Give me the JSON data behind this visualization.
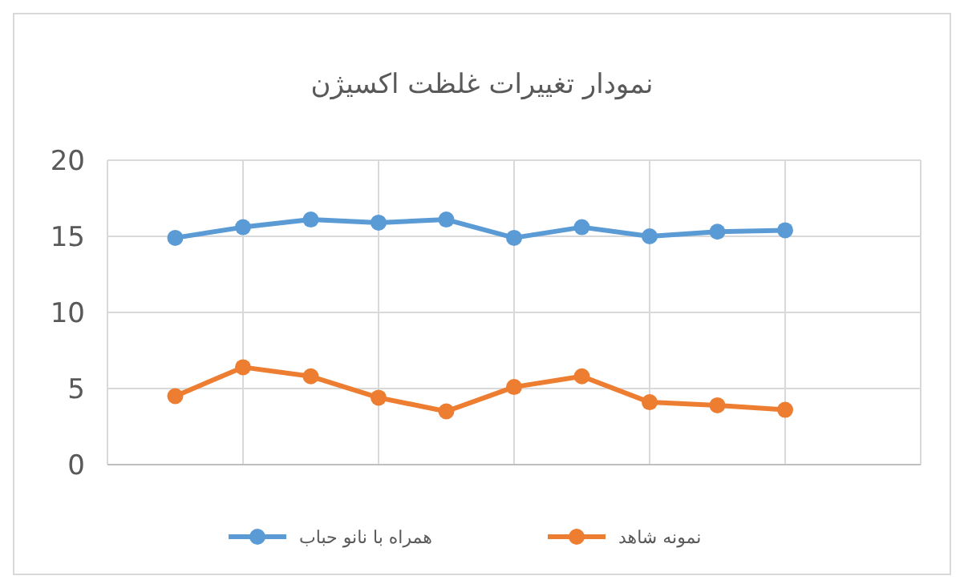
{
  "chart_data": {
    "type": "line",
    "title": "نمودار تغییرات غلظت اکسیژن",
    "categories": [
      null,
      null,
      null,
      null,
      null,
      null,
      null,
      null,
      null,
      null
    ],
    "ylim": [
      0,
      20
    ],
    "yticks": [
      0,
      5,
      10,
      15,
      20
    ],
    "grid": true,
    "legend": "bottom",
    "marker": "circle",
    "line_style": "solid",
    "series": [
      {
        "name": "همراه با نانو حباب",
        "color": "#5b9bd5",
        "values": [
          14.9,
          15.6,
          16.1,
          15.9,
          16.1,
          14.9,
          15.6,
          15.0,
          15.3,
          15.4
        ]
      },
      {
        "name": "نمونه شاهد",
        "color": "#ed7d31",
        "values": [
          4.5,
          6.4,
          5.8,
          4.4,
          3.5,
          5.1,
          5.8,
          4.1,
          3.9,
          3.6
        ]
      }
    ]
  }
}
